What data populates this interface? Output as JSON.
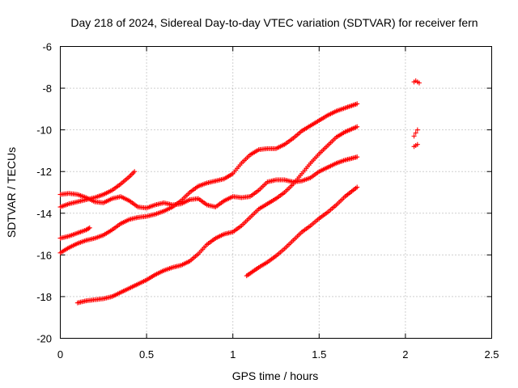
{
  "chart_data": {
    "type": "scatter",
    "title": "Day 218 of 2024, Sidereal Day-to-day VTEC variation (SDTVAR) for receiver fern",
    "xlabel": "GPS time / hours",
    "ylabel": "SDTVAR / TECUs",
    "xlim": [
      0,
      2.5
    ],
    "ylim": [
      -20,
      -6
    ],
    "xticks": [
      0,
      0.5,
      1,
      1.5,
      2,
      2.5
    ],
    "xtick_labels": [
      "0",
      "0.5",
      "1",
      "1.5",
      "2",
      "2.5"
    ],
    "yticks": [
      -20,
      -18,
      -16,
      -14,
      -12,
      -10,
      -8,
      -6
    ],
    "ytick_labels": [
      "-20",
      "-18",
      "-16",
      "-14",
      "-12",
      "-10",
      "-8",
      "-6"
    ],
    "grid": true,
    "marker": "plus",
    "color": "#ff0000",
    "series": [
      {
        "x": [
          0,
          0.05,
          0.1,
          0.15,
          0.2,
          0.25,
          0.3,
          0.35,
          0.4,
          0.45,
          0.5,
          0.55,
          0.6,
          0.65,
          0.7,
          0.75,
          0.8,
          0.85,
          0.9,
          0.95,
          1.0,
          1.05,
          1.1,
          1.15,
          1.2,
          1.25,
          1.3,
          1.35,
          1.4,
          1.45,
          1.5,
          1.55,
          1.6,
          1.65,
          1.72
        ],
        "y": [
          -13.1,
          -13.05,
          -13.1,
          -13.25,
          -13.45,
          -13.5,
          -13.3,
          -13.2,
          -13.4,
          -13.7,
          -13.75,
          -13.6,
          -13.5,
          -13.6,
          -13.55,
          -13.35,
          -13.3,
          -13.6,
          -13.7,
          -13.4,
          -13.2,
          -13.25,
          -13.2,
          -12.9,
          -12.5,
          -12.4,
          -12.4,
          -12.5,
          -12.45,
          -12.3,
          -12.0,
          -11.8,
          -11.6,
          -11.45,
          -11.3
        ]
      },
      {
        "x": [
          0,
          0.05,
          0.1,
          0.15,
          0.2,
          0.25,
          0.3,
          0.35,
          0.4,
          0.43
        ],
        "y": [
          -13.7,
          -13.55,
          -13.45,
          -13.35,
          -13.25,
          -13.1,
          -12.9,
          -12.6,
          -12.25,
          -12.0
        ]
      },
      {
        "x": [
          0,
          0.05,
          0.1,
          0.15,
          0.2,
          0.25,
          0.3,
          0.35,
          0.4,
          0.45,
          0.5,
          0.55,
          0.6,
          0.65,
          0.7,
          0.75,
          0.8,
          0.85,
          0.9,
          0.95,
          1.0,
          1.05,
          1.1,
          1.15,
          1.2,
          1.25,
          1.3,
          1.35,
          1.4,
          1.45,
          1.5,
          1.55,
          1.6,
          1.65,
          1.72
        ],
        "y": [
          -15.9,
          -15.65,
          -15.45,
          -15.3,
          -15.2,
          -15.05,
          -14.8,
          -14.5,
          -14.3,
          -14.2,
          -14.15,
          -14.05,
          -13.9,
          -13.7,
          -13.4,
          -13.0,
          -12.7,
          -12.55,
          -12.45,
          -12.35,
          -12.1,
          -11.6,
          -11.2,
          -10.95,
          -10.9,
          -10.9,
          -10.7,
          -10.4,
          -10.05,
          -9.8,
          -9.55,
          -9.3,
          -9.1,
          -8.95,
          -8.75
        ]
      },
      {
        "x": [
          0,
          0.05,
          0.1,
          0.15,
          0.17
        ],
        "y": [
          -15.2,
          -15.1,
          -14.95,
          -14.8,
          -14.7
        ]
      },
      {
        "x": [
          0.1,
          0.15,
          0.2,
          0.25,
          0.3,
          0.35,
          0.4,
          0.45,
          0.5,
          0.55,
          0.6,
          0.65,
          0.7,
          0.75,
          0.8,
          0.85,
          0.9,
          0.95,
          1.0,
          1.05,
          1.1,
          1.15,
          1.2,
          1.25,
          1.3,
          1.35,
          1.4,
          1.45,
          1.5,
          1.55,
          1.6,
          1.65,
          1.72
        ],
        "y": [
          -18.3,
          -18.2,
          -18.15,
          -18.1,
          -18.0,
          -17.8,
          -17.6,
          -17.4,
          -17.2,
          -16.95,
          -16.75,
          -16.6,
          -16.5,
          -16.3,
          -15.95,
          -15.5,
          -15.2,
          -15.0,
          -14.9,
          -14.6,
          -14.2,
          -13.8,
          -13.55,
          -13.3,
          -13.0,
          -12.6,
          -12.1,
          -11.6,
          -11.15,
          -10.75,
          -10.35,
          -10.1,
          -9.85
        ]
      },
      {
        "x": [
          1.08,
          1.15,
          1.2,
          1.25,
          1.3,
          1.35,
          1.4,
          1.45,
          1.5,
          1.55,
          1.6,
          1.65,
          1.72
        ],
        "y": [
          -17.0,
          -16.6,
          -16.35,
          -16.05,
          -15.7,
          -15.3,
          -14.9,
          -14.6,
          -14.25,
          -13.95,
          -13.6,
          -13.2,
          -12.75
        ]
      },
      {
        "x": [
          2.05,
          2.06,
          2.07,
          2.08
        ],
        "y": [
          -7.7,
          -7.65,
          -7.7,
          -7.75
        ]
      },
      {
        "x": [
          2.05,
          2.06,
          2.07
        ],
        "y": [
          -10.3,
          -10.15,
          -10.0
        ]
      },
      {
        "x": [
          2.05,
          2.06,
          2.07
        ],
        "y": [
          -10.8,
          -10.75,
          -10.7
        ]
      }
    ]
  }
}
